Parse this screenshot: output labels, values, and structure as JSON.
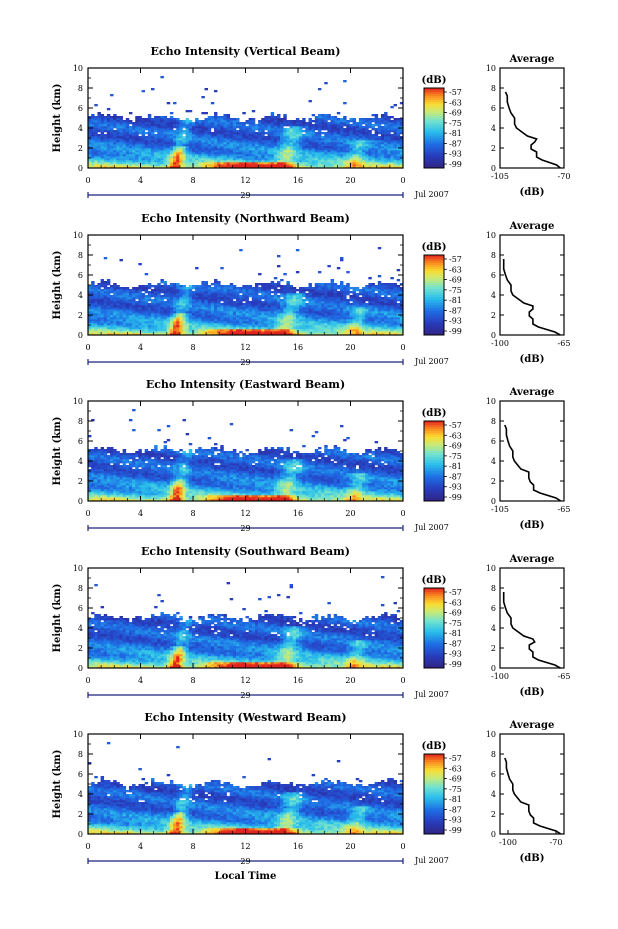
{
  "chart_data": [
    {
      "type": "heatmap",
      "title": "Echo Intensity (Vertical Beam)",
      "ylabel": "Height (km)",
      "xticks": [
        "0",
        "4",
        "8",
        "12",
        "16",
        "20",
        "0"
      ],
      "yticks": [
        "0",
        "2",
        "4",
        "6",
        "8",
        "10"
      ],
      "ylim": [
        0,
        10
      ],
      "date_day": "29",
      "date_month": "Jul 2007",
      "colorbar": {
        "unit": "(dB)",
        "ticks": [
          "-57",
          "-63",
          "-69",
          "-75",
          "-81",
          "-87",
          "-93",
          "-99"
        ]
      },
      "average": {
        "title": "Average",
        "xlabel": "(dB)",
        "xticks": [
          "-105",
          "-70"
        ],
        "xlim": [
          -105,
          -70
        ],
        "points": [
          [
            -72,
            0
          ],
          [
            -74,
            0.3
          ],
          [
            -82,
            0.8
          ],
          [
            -85,
            1.1
          ],
          [
            -85,
            1.6
          ],
          [
            -88,
            1.9
          ],
          [
            -88,
            2.3
          ],
          [
            -86,
            2.6
          ],
          [
            -85,
            2.9
          ],
          [
            -90,
            3.2
          ],
          [
            -93,
            3.6
          ],
          [
            -96,
            4.0
          ],
          [
            -97,
            4.4
          ],
          [
            -97,
            5.0
          ],
          [
            -99,
            5.5
          ],
          [
            -100,
            6.0
          ],
          [
            -101,
            6.6
          ],
          [
            -101,
            7.2
          ],
          [
            -102,
            7.6
          ]
        ]
      }
    },
    {
      "type": "heatmap",
      "title": "Echo Intensity (Northward Beam)",
      "ylabel": "Height (km)",
      "xticks": [
        "0",
        "4",
        "8",
        "12",
        "16",
        "20",
        "0"
      ],
      "yticks": [
        "0",
        "2",
        "4",
        "6",
        "8",
        "10"
      ],
      "ylim": [
        0,
        10
      ],
      "date_day": "29",
      "date_month": "Jul 2007",
      "colorbar": {
        "unit": "(dB)",
        "ticks": [
          "-57",
          "-63",
          "-69",
          "-75",
          "-81",
          "-87",
          "-93",
          "-99"
        ]
      },
      "average": {
        "title": "Average",
        "xlabel": "(dB)",
        "xticks": [
          "-100",
          "-65"
        ],
        "xlim": [
          -100,
          -65
        ],
        "points": [
          [
            -67,
            0
          ],
          [
            -70,
            0.3
          ],
          [
            -79,
            0.8
          ],
          [
            -82,
            1.1
          ],
          [
            -82,
            1.6
          ],
          [
            -84,
            1.9
          ],
          [
            -84,
            2.3
          ],
          [
            -82,
            2.6
          ],
          [
            -82,
            2.9
          ],
          [
            -87,
            3.2
          ],
          [
            -90,
            3.6
          ],
          [
            -93,
            4.0
          ],
          [
            -94,
            4.4
          ],
          [
            -94,
            5.0
          ],
          [
            -96,
            5.5
          ],
          [
            -97,
            6.0
          ],
          [
            -98,
            6.6
          ],
          [
            -98,
            7.2
          ],
          [
            -98,
            7.6
          ]
        ]
      }
    },
    {
      "type": "heatmap",
      "title": "Echo Intensity (Eastward Beam)",
      "ylabel": "Height (km)",
      "xticks": [
        "0",
        "4",
        "8",
        "12",
        "16",
        "20",
        "0"
      ],
      "yticks": [
        "0",
        "2",
        "4",
        "6",
        "8",
        "10"
      ],
      "ylim": [
        0,
        10
      ],
      "date_day": "29",
      "date_month": "Jul 2007",
      "colorbar": {
        "unit": "(dB)",
        "ticks": [
          "-57",
          "-63",
          "-69",
          "-75",
          "-81",
          "-87",
          "-93",
          "-99"
        ]
      },
      "average": {
        "title": "Average",
        "xlabel": "(dB)",
        "xticks": [
          "-105",
          "-65"
        ],
        "xlim": [
          -105,
          -65
        ],
        "points": [
          [
            -67,
            0
          ],
          [
            -70,
            0.3
          ],
          [
            -80,
            0.8
          ],
          [
            -84,
            1.1
          ],
          [
            -84,
            1.6
          ],
          [
            -86,
            1.9
          ],
          [
            -87,
            2.3
          ],
          [
            -87,
            2.6
          ],
          [
            -87,
            2.9
          ],
          [
            -92,
            3.2
          ],
          [
            -94,
            3.6
          ],
          [
            -96,
            4.0
          ],
          [
            -97,
            4.4
          ],
          [
            -97,
            5.0
          ],
          [
            -99,
            5.5
          ],
          [
            -100,
            6.0
          ],
          [
            -101,
            6.6
          ],
          [
            -101,
            7.2
          ],
          [
            -102,
            7.6
          ]
        ]
      }
    },
    {
      "type": "heatmap",
      "title": "Echo Intensity (Southward Beam)",
      "ylabel": "Height (km)",
      "xticks": [
        "0",
        "4",
        "8",
        "12",
        "16",
        "20",
        "0"
      ],
      "yticks": [
        "0",
        "2",
        "4",
        "6",
        "8",
        "10"
      ],
      "ylim": [
        0,
        10
      ],
      "date_day": "29",
      "date_month": "Jul 2007",
      "colorbar": {
        "unit": "(dB)",
        "ticks": [
          "-57",
          "-63",
          "-69",
          "-75",
          "-81",
          "-87",
          "-93",
          "-99"
        ]
      },
      "average": {
        "title": "Average",
        "xlabel": "(dB)",
        "xticks": [
          "-100",
          "-65"
        ],
        "xlim": [
          -100,
          -65
        ],
        "points": [
          [
            -67,
            0
          ],
          [
            -70,
            0.3
          ],
          [
            -79,
            0.8
          ],
          [
            -82,
            1.1
          ],
          [
            -82,
            1.6
          ],
          [
            -84,
            1.9
          ],
          [
            -84,
            2.3
          ],
          [
            -81,
            2.6
          ],
          [
            -82,
            2.9
          ],
          [
            -87,
            3.2
          ],
          [
            -90,
            3.6
          ],
          [
            -93,
            4.0
          ],
          [
            -94,
            4.4
          ],
          [
            -94,
            5.0
          ],
          [
            -96,
            5.5
          ],
          [
            -97,
            6.0
          ],
          [
            -98,
            6.6
          ],
          [
            -98,
            7.2
          ],
          [
            -98,
            7.6
          ]
        ]
      }
    },
    {
      "type": "heatmap",
      "title": "Echo Intensity (Westward Beam)",
      "ylabel": "Height (km)",
      "xlabel": "Local Time",
      "xticks": [
        "0",
        "4",
        "8",
        "12",
        "16",
        "20",
        "0"
      ],
      "yticks": [
        "0",
        "2",
        "4",
        "6",
        "8",
        "10"
      ],
      "ylim": [
        0,
        10
      ],
      "date_day": "29",
      "date_month": "Jul 2007",
      "colorbar": {
        "unit": "(dB)",
        "ticks": [
          "-57",
          "-63",
          "-69",
          "-75",
          "-81",
          "-87",
          "-93",
          "-99"
        ]
      },
      "average": {
        "title": "Average",
        "xlabel": "(dB)",
        "xticks": [
          "-100",
          "-70"
        ],
        "xlim": [
          -105,
          -65
        ],
        "points": [
          [
            -67,
            0
          ],
          [
            -70,
            0.3
          ],
          [
            -80,
            0.8
          ],
          [
            -84,
            1.1
          ],
          [
            -84,
            1.6
          ],
          [
            -86,
            1.9
          ],
          [
            -87,
            2.3
          ],
          [
            -87,
            2.6
          ],
          [
            -87,
            2.9
          ],
          [
            -92,
            3.2
          ],
          [
            -94,
            3.6
          ],
          [
            -96,
            4.0
          ],
          [
            -97,
            4.4
          ],
          [
            -97,
            5.0
          ],
          [
            -99,
            5.5
          ],
          [
            -100,
            6.0
          ],
          [
            -101,
            6.6
          ],
          [
            -101,
            7.2
          ],
          [
            -102,
            7.6
          ]
        ]
      }
    }
  ]
}
